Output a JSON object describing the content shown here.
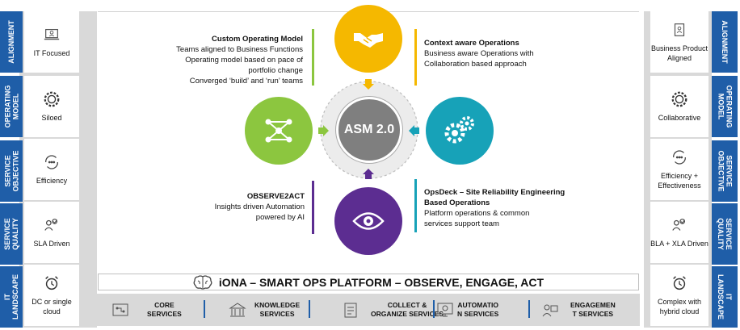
{
  "left_panel": {
    "sections": [
      {
        "tag": "ALIGNMENT",
        "label": "IT Focused",
        "icon": "laptop-person-icon"
      },
      {
        "tag": "OPERATING MODEL",
        "label": "Siloed",
        "icon": "gear-ring-icon"
      },
      {
        "tag": "SERVICE OBJECTIVE",
        "label": "Efficiency",
        "icon": "cycle-people-icon"
      },
      {
        "tag": "SERVICE QUALITY",
        "label": "SLA Driven",
        "icon": "people-check-icon"
      },
      {
        "tag": "IT LANDSCAPE",
        "label": "DC or single cloud",
        "icon": "alarm-clock-icon"
      }
    ]
  },
  "right_panel": {
    "sections": [
      {
        "tag": "ALIGNMENT",
        "label": "Business Product Aligned",
        "icon": "clipboard-person-icon"
      },
      {
        "tag": "OPERATING MODEL",
        "label": "Collaborative",
        "icon": "gear-ring-icon"
      },
      {
        "tag": "SERVICE OBJECTIVE",
        "label": "Efficiency + Effectiveness",
        "icon": "cycle-people-icon"
      },
      {
        "tag": "SERVICE QUALITY",
        "label": "BLA + XLA Driven",
        "icon": "people-check-icon"
      },
      {
        "tag": "IT LANDSCAPE",
        "label": "Complex with hybrid cloud",
        "icon": "alarm-clock-icon"
      }
    ]
  },
  "center": {
    "hub": {
      "label": "ASM 2.0"
    },
    "top_left_text": {
      "heading": "Custom Operating Model",
      "lines": [
        "Teams aligned to Business Functions",
        "Operating model based on pace of",
        "portfolio change",
        "Converged ‘build’ and ‘run’ teams"
      ]
    },
    "top_right_text": {
      "heading": "Context aware Operations",
      "lines": [
        "Business aware Operations with",
        "Collaboration based approach"
      ]
    },
    "bottom_left_text": {
      "heading": "OBSERVE2ACT",
      "lines": [
        "Insights driven Automation",
        "powered by AI"
      ]
    },
    "bottom_right_text": {
      "heading": "OpsDeck – Site Reliability Engineering",
      "heading2": "Based Operations",
      "lines": [
        "Platform operations & common",
        "services support team"
      ]
    },
    "nodes": {
      "top": {
        "icon": "handshake-icon",
        "color": "#f5b800"
      },
      "left": {
        "icon": "network-people-icon",
        "color": "#8cc63f"
      },
      "right": {
        "icon": "gears-icon",
        "color": "#17a2b8"
      },
      "bottom": {
        "icon": "eye-icon",
        "color": "#5c2d91"
      }
    }
  },
  "platform": {
    "title": "iONA – SMART OPS PLATFORM – OBSERVE, ENGAGE, ACT",
    "icon": "brain-icon"
  },
  "services": [
    {
      "line1": "CORE",
      "line2": "SERVICES",
      "icon": "circuit-icon"
    },
    {
      "line1": "KNOWLEDGE",
      "line2": "SERVICES",
      "icon": "book-building-icon"
    },
    {
      "line1": "COLLECT &",
      "line2": "ORGANIZE SERVICES",
      "icon": "clipboard-icon"
    },
    {
      "line1": "AUTOMATIO",
      "line2": "N SERVICES",
      "icon": "automation-icon"
    },
    {
      "line1": "ENGAGEMEN",
      "line2": "T SERVICES",
      "icon": "agent-icon"
    }
  ],
  "colors": {
    "tag_blue": "#1f5ea8",
    "panel_gray": "#d9d9d9",
    "hub_gray": "#7f7f7f",
    "ring_gray": "#e6e6e6"
  }
}
